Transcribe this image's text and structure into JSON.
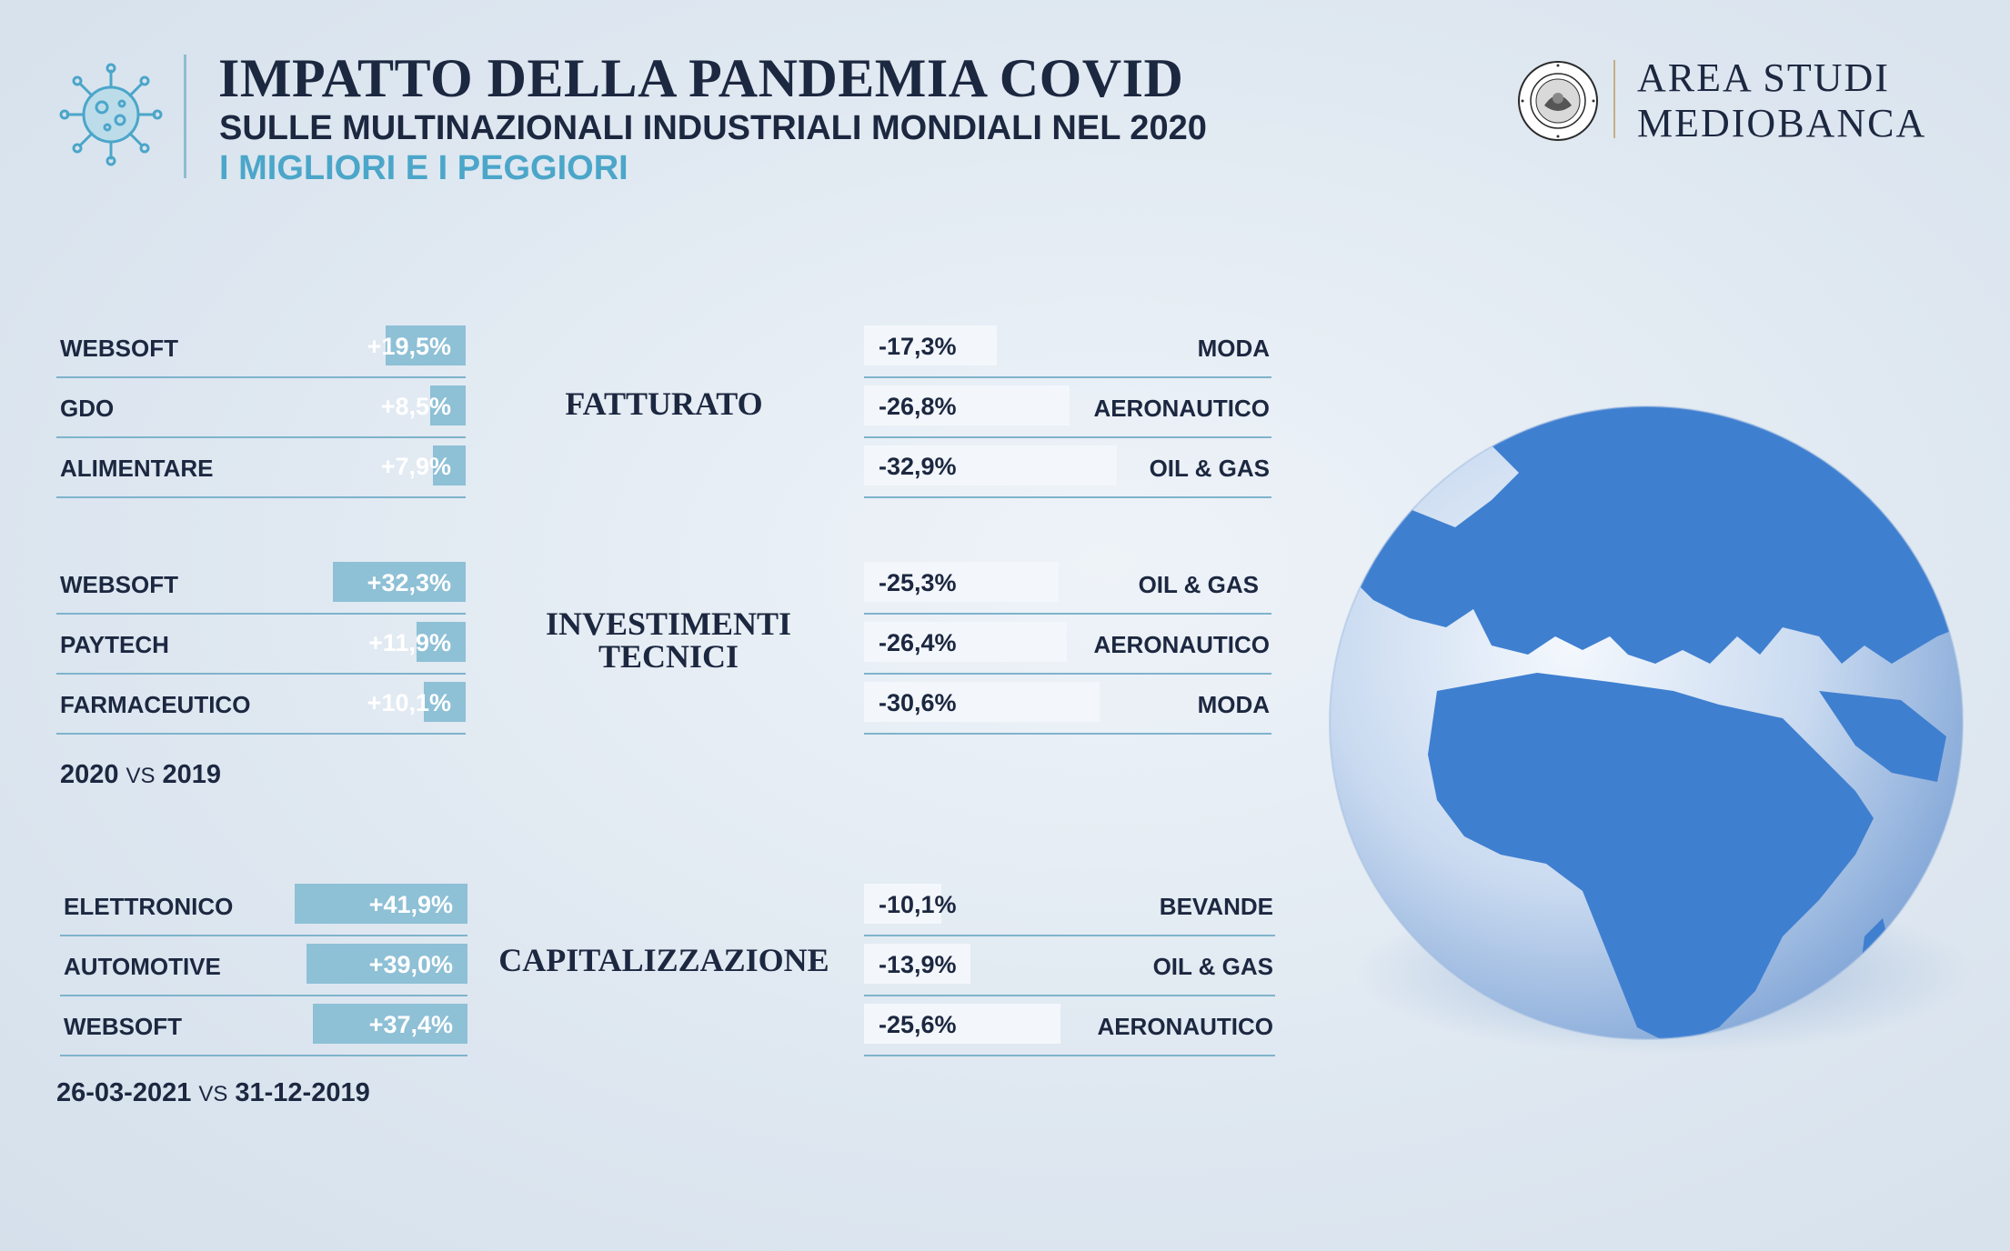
{
  "header": {
    "title": "IMPATTO DELLA PANDEMIA COVID",
    "subtitle": "SULLE MULTINAZIONALI INDUSTRIALI MONDIALI NEL 2020",
    "subtitle2": "I MIGLIORI E I PEGGIORI",
    "virus_icon": "virus-icon"
  },
  "brand": {
    "line1": "AREA STUDI",
    "line2": "MEDIOBANCA",
    "seal_icon": "mediobanca-seal-logo",
    "seal_text": "MEDIOBANCA BANCA DI CREDITO FINANZIARIO"
  },
  "colors": {
    "navy": "#1c2740",
    "accent_blue": "#4ba6c9",
    "positive_bar": "#8ec0d6",
    "negative_bar": "#f3f7fb",
    "rule": "#7fb3cc",
    "globe": "#3f7fd0"
  },
  "chart_data": [
    {
      "type": "bar",
      "title": "FATTURATO",
      "best": {
        "categories": [
          "WEBSOFT",
          "GDO",
          "ALIMENTARE"
        ],
        "values": [
          19.5,
          8.5,
          7.9
        ],
        "labels": [
          "+19,5%",
          "+8,5%",
          "+7,9%"
        ]
      },
      "worst": {
        "categories": [
          "MODA",
          "AERONAUTICO",
          "OIL & GAS"
        ],
        "values": [
          -17.3,
          -26.8,
          -32.9
        ],
        "labels": [
          "-17,3%",
          "-26,8%",
          "-32,9%"
        ]
      }
    },
    {
      "type": "bar",
      "title": "INVESTIMENTI TECNICI",
      "note_left": "2020",
      "note_vs": "VS",
      "note_right": "2019",
      "best": {
        "categories": [
          "WEBSOFT",
          "PAYTECH",
          "FARMACEUTICO"
        ],
        "values": [
          32.3,
          11.9,
          10.1
        ],
        "labels": [
          "+32,3%",
          "+11,9%",
          "+10,1%"
        ]
      },
      "worst": {
        "categories": [
          "OIL & GAS",
          "AERONAUTICO",
          "MODA"
        ],
        "values": [
          -25.3,
          -26.4,
          -30.6
        ],
        "labels": [
          "-25,3%",
          "-26,4%",
          "-30,6%"
        ]
      }
    },
    {
      "type": "bar",
      "title": "CAPITALIZZAZIONE",
      "note_left": "26-03-2021",
      "note_vs": "VS",
      "note_right": "31-12-2019",
      "best": {
        "categories": [
          "ELETTRONICO",
          "AUTOMOTIVE",
          "WEBSOFT"
        ],
        "values": [
          41.9,
          39.0,
          37.4
        ],
        "labels": [
          "+41,9%",
          "+39,0%",
          "+37,4%"
        ]
      },
      "worst": {
        "categories": [
          "BEVANDE",
          "OIL & GAS",
          "AERONAUTICO"
        ],
        "values": [
          -10.1,
          -13.9,
          -25.6
        ],
        "labels": [
          "-10,1%",
          "-13,9%",
          "-25,6%"
        ]
      }
    }
  ]
}
